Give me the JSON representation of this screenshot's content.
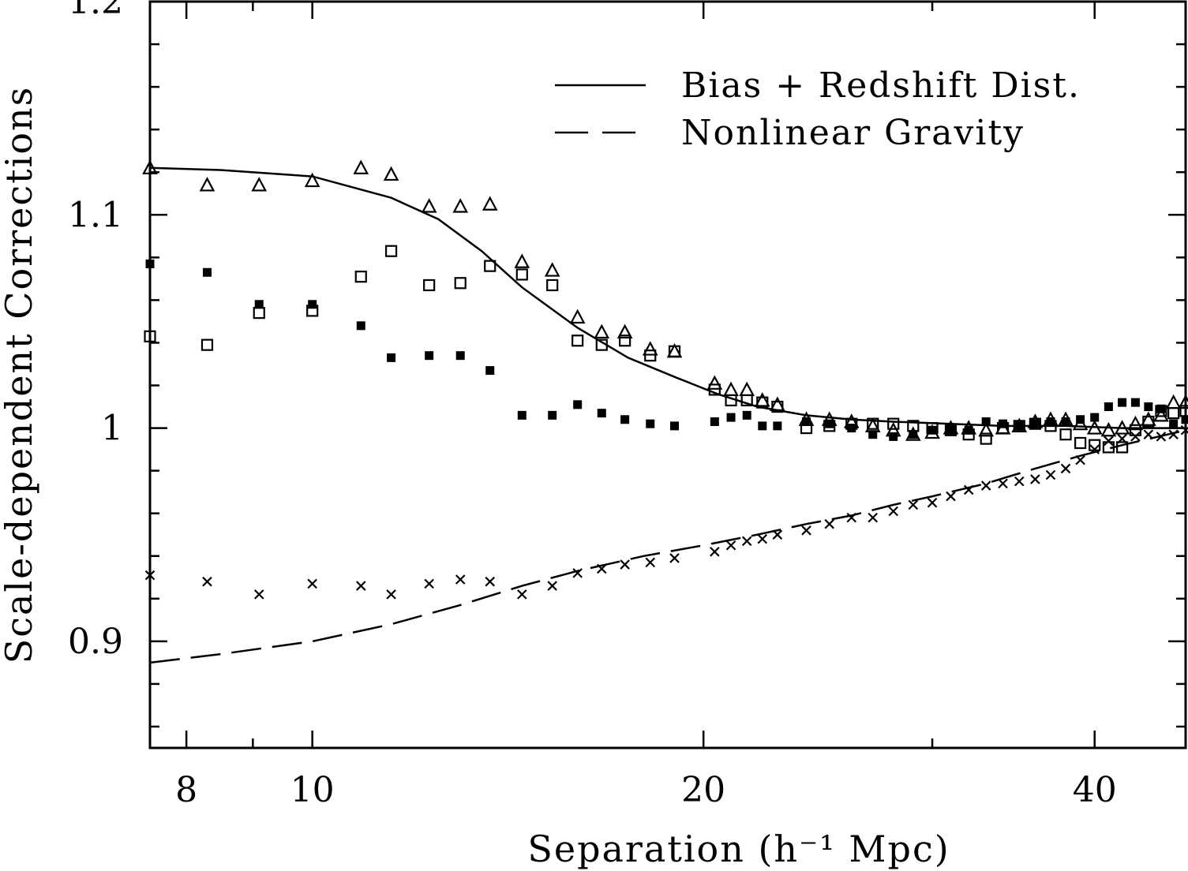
{
  "chart_data": {
    "type": "scatter",
    "title": "",
    "xlabel": "Separation (h⁻¹ Mpc)",
    "ylabel": "Scale-dependent Corrections",
    "xscale": "log",
    "xlim": [
      7.5,
      47
    ],
    "ylim": [
      0.85,
      1.2
    ],
    "xticks": [
      {
        "value": 8,
        "label": "8"
      },
      {
        "value": 10,
        "label": "10"
      },
      {
        "value": 20,
        "label": "20"
      },
      {
        "value": 40,
        "label": "40"
      }
    ],
    "yticks": [
      {
        "value": 0.9,
        "label": "0.9"
      },
      {
        "value": 1.0,
        "label": "1"
      },
      {
        "value": 1.1,
        "label": "1.1"
      },
      {
        "value": 1.2,
        "label": "1.2"
      }
    ],
    "legend": {
      "placement": "top-right",
      "entries": [
        {
          "label": "Bias + Redshift Dist.",
          "style": "solid"
        },
        {
          "label": "Nonlinear Gravity",
          "style": "dashed"
        }
      ]
    },
    "lines": [
      {
        "name": "Bias + Redshift Dist.",
        "style": "solid",
        "x": [
          7.5,
          8.5,
          10.0,
          11.5,
          12.5,
          13.5,
          14.5,
          16.0,
          17.5,
          19.0,
          20.5,
          22.0,
          24.0,
          26.0,
          28.0,
          31.0,
          34.0,
          38.0,
          42.0,
          47.0
        ],
        "y": [
          1.122,
          1.121,
          1.118,
          1.108,
          1.098,
          1.083,
          1.066,
          1.047,
          1.033,
          1.024,
          1.016,
          1.01,
          1.006,
          1.004,
          1.003,
          1.002,
          1.001,
          1.001,
          1.0,
          1.0
        ]
      },
      {
        "name": "Nonlinear Gravity",
        "style": "dashed",
        "x": [
          7.5,
          8.5,
          10.0,
          11.5,
          13.0,
          14.5,
          16.0,
          18.0,
          20.0,
          22.0,
          24.0,
          26.0,
          28.0,
          30.0,
          33.0,
          36.0,
          39.0,
          42.0,
          47.0
        ],
        "y": [
          0.89,
          0.894,
          0.9,
          0.908,
          0.917,
          0.926,
          0.933,
          0.94,
          0.945,
          0.95,
          0.955,
          0.959,
          0.964,
          0.968,
          0.974,
          0.981,
          0.987,
          0.992,
          0.999
        ]
      }
    ],
    "series": [
      {
        "name": "open triangles",
        "marker": "open-triangle",
        "points": [
          [
            7.5,
            1.122
          ],
          [
            8.3,
            1.114
          ],
          [
            9.1,
            1.114
          ],
          [
            10.0,
            1.116
          ],
          [
            10.9,
            1.122
          ],
          [
            11.5,
            1.119
          ],
          [
            12.3,
            1.104
          ],
          [
            13.0,
            1.104
          ],
          [
            13.7,
            1.105
          ],
          [
            14.5,
            1.078
          ],
          [
            15.3,
            1.074
          ],
          [
            16.0,
            1.052
          ],
          [
            16.7,
            1.045
          ],
          [
            17.4,
            1.045
          ],
          [
            18.2,
            1.037
          ],
          [
            19.0,
            1.036
          ],
          [
            20.4,
            1.021
          ],
          [
            21.0,
            1.018
          ],
          [
            21.6,
            1.018
          ],
          [
            22.2,
            1.013
          ],
          [
            22.8,
            1.011
          ],
          [
            24.0,
            1.004
          ],
          [
            25.0,
            1.004
          ],
          [
            26.0,
            1.003
          ],
          [
            27.0,
            1.001
          ],
          [
            28.0,
            0.999
          ],
          [
            29.0,
            0.997
          ],
          [
            30.0,
            0.998
          ],
          [
            31.0,
            1.0
          ],
          [
            32.0,
            1.0
          ],
          [
            33.0,
            0.999
          ],
          [
            34.0,
            1.0
          ],
          [
            35.0,
            1.001
          ],
          [
            36.0,
            1.003
          ],
          [
            37.0,
            1.004
          ],
          [
            38.0,
            1.004
          ],
          [
            39.0,
            1.002
          ],
          [
            40.0,
            1.0
          ],
          [
            41.0,
            0.999
          ],
          [
            42.0,
            1.0
          ],
          [
            43.0,
            1.002
          ],
          [
            44.0,
            1.004
          ],
          [
            45.0,
            1.006
          ],
          [
            46.0,
            1.012
          ],
          [
            47.0,
            1.012
          ]
        ]
      },
      {
        "name": "open squares",
        "marker": "open-square",
        "points": [
          [
            7.5,
            1.043
          ],
          [
            8.3,
            1.039
          ],
          [
            9.1,
            1.054
          ],
          [
            10.0,
            1.055
          ],
          [
            10.9,
            1.071
          ],
          [
            11.5,
            1.083
          ],
          [
            12.3,
            1.067
          ],
          [
            13.0,
            1.068
          ],
          [
            13.7,
            1.076
          ],
          [
            14.5,
            1.072
          ],
          [
            15.3,
            1.067
          ],
          [
            16.0,
            1.041
          ],
          [
            16.7,
            1.039
          ],
          [
            17.4,
            1.041
          ],
          [
            18.2,
            1.034
          ],
          [
            19.0,
            1.036
          ],
          [
            20.4,
            1.018
          ],
          [
            21.0,
            1.013
          ],
          [
            21.6,
            1.013
          ],
          [
            22.2,
            1.012
          ],
          [
            22.8,
            1.01
          ],
          [
            24.0,
            1.0
          ],
          [
            25.0,
            1.001
          ],
          [
            26.0,
            1.002
          ],
          [
            27.0,
            1.002
          ],
          [
            28.0,
            1.002
          ],
          [
            29.0,
            1.001
          ],
          [
            30.0,
            1.0
          ],
          [
            31.0,
            0.999
          ],
          [
            32.0,
            0.997
          ],
          [
            33.0,
            0.995
          ],
          [
            34.0,
            1.0
          ],
          [
            35.0,
            1.001
          ],
          [
            36.0,
            1.002
          ],
          [
            37.0,
            1.001
          ],
          [
            38.0,
            0.997
          ],
          [
            39.0,
            0.993
          ],
          [
            40.0,
            0.992
          ],
          [
            41.0,
            0.991
          ],
          [
            42.0,
            0.991
          ],
          [
            43.0,
            0.999
          ],
          [
            44.0,
            1.003
          ],
          [
            45.0,
            1.008
          ],
          [
            46.0,
            1.007
          ],
          [
            47.0,
            1.008
          ]
        ]
      },
      {
        "name": "filled squares",
        "marker": "filled-square",
        "points": [
          [
            7.5,
            1.077
          ],
          [
            8.3,
            1.073
          ],
          [
            9.1,
            1.058
          ],
          [
            10.0,
            1.058
          ],
          [
            10.9,
            1.048
          ],
          [
            11.5,
            1.033
          ],
          [
            12.3,
            1.034
          ],
          [
            13.0,
            1.034
          ],
          [
            13.7,
            1.027
          ],
          [
            14.5,
            1.006
          ],
          [
            15.3,
            1.006
          ],
          [
            16.0,
            1.011
          ],
          [
            16.7,
            1.007
          ],
          [
            17.4,
            1.004
          ],
          [
            18.2,
            1.002
          ],
          [
            19.0,
            1.001
          ],
          [
            20.4,
            1.003
          ],
          [
            21.0,
            1.005
          ],
          [
            21.6,
            1.006
          ],
          [
            22.2,
            1.001
          ],
          [
            22.8,
            1.001
          ],
          [
            24.0,
            1.003
          ],
          [
            25.0,
            1.002
          ],
          [
            26.0,
            1.0
          ],
          [
            27.0,
            0.997
          ],
          [
            28.0,
            0.996
          ],
          [
            29.0,
            0.997
          ],
          [
            30.0,
            0.999
          ],
          [
            31.0,
            0.999
          ],
          [
            32.0,
            0.999
          ],
          [
            33.0,
            1.003
          ],
          [
            34.0,
            1.002
          ],
          [
            35.0,
            1.001
          ],
          [
            36.0,
            1.002
          ],
          [
            37.0,
            1.003
          ],
          [
            38.0,
            1.003
          ],
          [
            39.0,
            1.004
          ],
          [
            40.0,
            1.005
          ],
          [
            41.0,
            1.01
          ],
          [
            42.0,
            1.012
          ],
          [
            43.0,
            1.012
          ],
          [
            44.0,
            1.01
          ],
          [
            45.0,
            1.009
          ],
          [
            46.0,
            1.002
          ],
          [
            47.0,
            1.004
          ]
        ]
      },
      {
        "name": "crosses",
        "marker": "cross",
        "points": [
          [
            7.5,
            0.931
          ],
          [
            8.3,
            0.928
          ],
          [
            9.1,
            0.922
          ],
          [
            10.0,
            0.927
          ],
          [
            10.9,
            0.926
          ],
          [
            11.5,
            0.922
          ],
          [
            12.3,
            0.927
          ],
          [
            13.0,
            0.929
          ],
          [
            13.7,
            0.928
          ],
          [
            14.5,
            0.922
          ],
          [
            15.3,
            0.926
          ],
          [
            16.0,
            0.932
          ],
          [
            16.7,
            0.934
          ],
          [
            17.4,
            0.936
          ],
          [
            18.2,
            0.937
          ],
          [
            19.0,
            0.939
          ],
          [
            20.4,
            0.942
          ],
          [
            21.0,
            0.945
          ],
          [
            21.6,
            0.947
          ],
          [
            22.2,
            0.948
          ],
          [
            22.8,
            0.95
          ],
          [
            24.0,
            0.952
          ],
          [
            25.0,
            0.955
          ],
          [
            26.0,
            0.958
          ],
          [
            27.0,
            0.958
          ],
          [
            28.0,
            0.961
          ],
          [
            29.0,
            0.964
          ],
          [
            30.0,
            0.965
          ],
          [
            31.0,
            0.968
          ],
          [
            32.0,
            0.971
          ],
          [
            33.0,
            0.973
          ],
          [
            34.0,
            0.974
          ],
          [
            35.0,
            0.975
          ],
          [
            36.0,
            0.976
          ],
          [
            37.0,
            0.978
          ],
          [
            38.0,
            0.981
          ],
          [
            39.0,
            0.985
          ],
          [
            40.0,
            0.99
          ],
          [
            41.0,
            0.994
          ],
          [
            42.0,
            0.995
          ],
          [
            43.0,
            0.996
          ],
          [
            44.0,
            0.997
          ],
          [
            45.0,
            0.996
          ],
          [
            46.0,
            0.997
          ],
          [
            47.0,
            0.999
          ]
        ]
      }
    ]
  }
}
